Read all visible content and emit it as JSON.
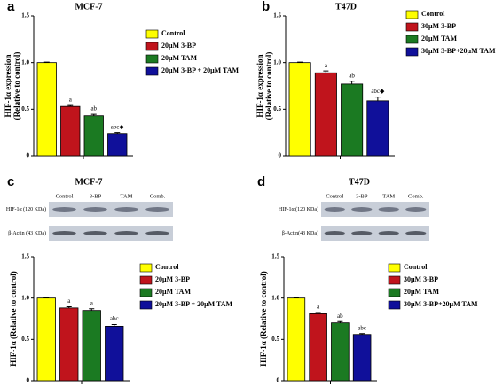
{
  "chart_data": [
    {
      "type": "bar",
      "panel": "a",
      "title": "MCF-7",
      "ylabel": [
        "HIF-1α expression",
        "(Relative to control)"
      ],
      "ylim": [
        0,
        1.5
      ],
      "yticks": [
        0,
        0.5,
        {
          "value": 1,
          "label": "1.0"
        },
        1.5
      ],
      "series": [
        {
          "name": "Control",
          "color": "#ffff00",
          "values": [
            1.0
          ],
          "errors": [
            0.005
          ]
        },
        {
          "name": "20μM 3-BP",
          "color": "#c0141c",
          "values": [
            0.53
          ],
          "errors": [
            0.01
          ],
          "annotation": "a"
        },
        {
          "name": "20μM TAM",
          "color": "#1b7a22",
          "values": [
            0.43
          ],
          "errors": [
            0.015
          ],
          "annotation": "ab"
        },
        {
          "name": "20μM 3-BP + 20μM TAM",
          "color": "#10109a",
          "values": [
            0.24
          ],
          "errors": [
            0.01
          ],
          "annotation": "abc◆"
        }
      ]
    },
    {
      "type": "bar",
      "panel": "b",
      "title": "T47D",
      "ylabel": [
        "HIF-1α expression",
        "(Relative to control)"
      ],
      "ylim": [
        0,
        1.5
      ],
      "yticks": [
        0,
        0.5,
        {
          "value": 1,
          "label": "1.0"
        },
        1.5
      ],
      "series": [
        {
          "name": "Control",
          "color": "#ffff00",
          "values": [
            1.0
          ],
          "errors": [
            0.005
          ]
        },
        {
          "name": "30μM 3-BP",
          "color": "#c0141c",
          "values": [
            0.89
          ],
          "errors": [
            0.02
          ],
          "annotation": "a"
        },
        {
          "name": "20μM TAM",
          "color": "#1b7a22",
          "values": [
            0.77
          ],
          "errors": [
            0.03
          ],
          "annotation": "ab"
        },
        {
          "name": "30μM 3-BP+20μM TAM",
          "color": "#10109a",
          "values": [
            0.59
          ],
          "errors": [
            0.04
          ],
          "annotation": "abc◆"
        }
      ]
    },
    {
      "type": "bar",
      "panel": "c",
      "title": "MCF-7",
      "blot": {
        "lanes": [
          "Control",
          "3-BP",
          "TAM",
          "Comb."
        ],
        "rows": [
          "HIF-1α (120 KDa)",
          "β-Actin (43 KDa)"
        ]
      },
      "ylabel": "HIF-1α (Relative to control)",
      "ylim": [
        0,
        1.5
      ],
      "yticks": [
        0,
        0.5,
        {
          "value": 1,
          "label": "1.0"
        },
        1.5
      ],
      "series": [
        {
          "name": "Control",
          "color": "#ffff00",
          "values": [
            1.0
          ],
          "errors": [
            0.005
          ]
        },
        {
          "name": "20μM 3-BP",
          "color": "#c0141c",
          "values": [
            0.88
          ],
          "errors": [
            0.015
          ],
          "annotation": "a"
        },
        {
          "name": "20μM TAM",
          "color": "#1b7a22",
          "values": [
            0.85
          ],
          "errors": [
            0.02
          ],
          "annotation": "a"
        },
        {
          "name": "20μM 3-BP + 20μM TAM",
          "color": "#10109a",
          "values": [
            0.66
          ],
          "errors": [
            0.02
          ],
          "annotation": "abc"
        }
      ]
    },
    {
      "type": "bar",
      "panel": "d",
      "title": "T47D",
      "blot": {
        "lanes": [
          "Control",
          "3-BP",
          "TAM",
          "Comb."
        ],
        "rows": [
          "HIF-1α (120 KDa)",
          "β-Actin(43 KDa)"
        ]
      },
      "ylabel": "HIF-1α (Relative to control)",
      "ylim": [
        0,
        1.5
      ],
      "yticks": [
        0,
        0.5,
        {
          "value": 1,
          "label": "1.0"
        },
        1.5
      ],
      "series": [
        {
          "name": "Control",
          "color": "#ffff00",
          "values": [
            1.0
          ],
          "errors": [
            0.005
          ]
        },
        {
          "name": "30μM 3-BP",
          "color": "#c0141c",
          "values": [
            0.81
          ],
          "errors": [
            0.015
          ],
          "annotation": "a"
        },
        {
          "name": "20μM TAM",
          "color": "#1b7a22",
          "values": [
            0.7
          ],
          "errors": [
            0.015
          ],
          "annotation": "ab"
        },
        {
          "name": "30μM 3-BP+20μM TAM",
          "color": "#10109a",
          "values": [
            0.56
          ],
          "errors": [
            0.01
          ],
          "annotation": "abc"
        }
      ]
    }
  ]
}
